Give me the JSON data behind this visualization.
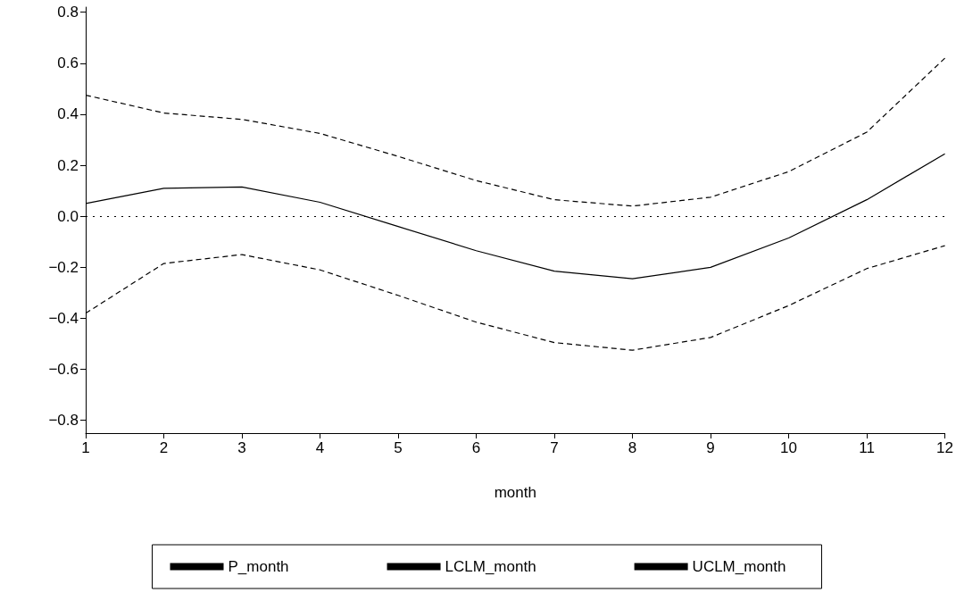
{
  "chart_data": {
    "type": "line",
    "xlabel": "month",
    "x": [
      1,
      2,
      3,
      4,
      5,
      6,
      7,
      8,
      9,
      10,
      11,
      12
    ],
    "series": [
      {
        "name": "P_month",
        "color": "#000000",
        "line_style": "solid",
        "values": [
          0.05,
          0.11,
          0.115,
          0.055,
          -0.04,
          -0.135,
          -0.215,
          -0.245,
          -0.2,
          -0.085,
          0.065,
          0.245
        ]
      },
      {
        "name": "LCLM_month",
        "color": "#000000",
        "line_style": "dashed",
        "values": [
          -0.38,
          -0.185,
          -0.15,
          -0.21,
          -0.31,
          -0.415,
          -0.495,
          -0.525,
          -0.475,
          -0.35,
          -0.205,
          -0.115
        ]
      },
      {
        "name": "UCLM_month",
        "color": "#000000",
        "line_style": "dashed",
        "values": [
          0.475,
          0.405,
          0.38,
          0.325,
          0.235,
          0.14,
          0.065,
          0.04,
          0.075,
          0.175,
          0.33,
          0.62
        ]
      }
    ],
    "xlim": [
      1,
      12
    ],
    "xticks": [
      1,
      2,
      3,
      4,
      5,
      6,
      7,
      8,
      9,
      10,
      11,
      12
    ],
    "ylim": [
      -0.85,
      0.82
    ],
    "yticks": [
      {
        "value": -0.8,
        "label": "−0.8"
      },
      {
        "value": -0.6,
        "label": "−0.6"
      },
      {
        "value": -0.4,
        "label": "−0.4"
      },
      {
        "value": -0.2,
        "label": "−0.2"
      },
      {
        "value": 0,
        "label": "0.0"
      },
      {
        "value": 0.2,
        "label": "0.2"
      },
      {
        "value": 0.4,
        "label": "0.4"
      },
      {
        "value": 0.6,
        "label": "0.6"
      },
      {
        "value": 0.8,
        "label": "0.8"
      }
    ],
    "ref_lines": [
      {
        "axis": "y",
        "value": 0,
        "color": "#000000",
        "line_style": "dotted"
      }
    ],
    "marker": "none",
    "grid": false,
    "legend": "bottom"
  }
}
